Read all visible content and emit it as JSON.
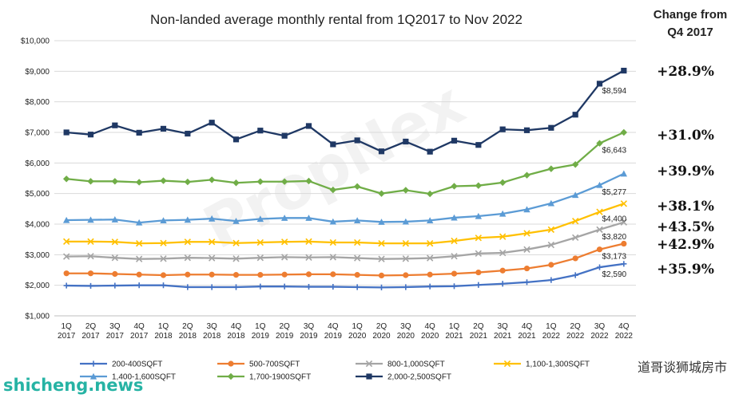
{
  "chart_data": {
    "type": "line",
    "title": "Non-landed average monthly rental from 1Q2017 to Nov 2022",
    "x_quarters": [
      "1Q",
      "2Q",
      "3Q",
      "4Q",
      "1Q",
      "2Q",
      "3Q",
      "4Q",
      "1Q",
      "2Q",
      "3Q",
      "4Q",
      "1Q",
      "2Q",
      "3Q",
      "4Q",
      "1Q",
      "2Q",
      "3Q",
      "4Q",
      "1Q",
      "2Q",
      "3Q",
      "4Q"
    ],
    "x_years": [
      "2017",
      "2017",
      "2017",
      "2017",
      "2018",
      "2018",
      "2018",
      "2018",
      "2019",
      "2019",
      "2019",
      "2019",
      "2020",
      "2020",
      "2020",
      "2020",
      "2021",
      "2021",
      "2021",
      "2021",
      "2022",
      "2022",
      "2022",
      "2022"
    ],
    "ylim": [
      1000,
      10000
    ],
    "y_ticks": [
      1000,
      2000,
      3000,
      4000,
      5000,
      6000,
      7000,
      8000,
      9000,
      10000
    ],
    "y_tick_labels": [
      "$1,000",
      "$2,000",
      "$3,000",
      "$4,000",
      "$5,000",
      "$6,000",
      "$7,000",
      "$8,000",
      "$9,000",
      "$10,000"
    ],
    "grid": "horizontal",
    "legend_position": "bottom",
    "series": [
      {
        "name": "200-400SQFT",
        "color": "#4472c4",
        "marker": "plus",
        "values": [
          1990,
          1980,
          1990,
          2000,
          2000,
          1940,
          1940,
          1940,
          1960,
          1960,
          1950,
          1950,
          1940,
          1930,
          1940,
          1960,
          1970,
          2010,
          2050,
          2100,
          2170,
          2330,
          2590,
          2700
        ],
        "end_label": "$2,590"
      },
      {
        "name": "500-700SQFT",
        "color": "#ed7d31",
        "marker": "circle",
        "values": [
          2390,
          2390,
          2370,
          2350,
          2330,
          2350,
          2350,
          2340,
          2340,
          2350,
          2360,
          2360,
          2340,
          2320,
          2330,
          2350,
          2380,
          2420,
          2480,
          2550,
          2670,
          2880,
          3173,
          3360
        ],
        "end_label": "$3,173"
      },
      {
        "name": "800-1,000SQFT",
        "color": "#a5a5a5",
        "marker": "x",
        "values": [
          2940,
          2950,
          2900,
          2860,
          2870,
          2900,
          2890,
          2870,
          2900,
          2920,
          2910,
          2920,
          2890,
          2860,
          2870,
          2890,
          2950,
          3040,
          3060,
          3170,
          3320,
          3560,
          3820,
          4060
        ],
        "end_label": "$3,820"
      },
      {
        "name": "1,100-1,300SQFT",
        "color": "#ffc000",
        "marker": "x",
        "values": [
          3430,
          3430,
          3420,
          3370,
          3380,
          3420,
          3420,
          3380,
          3400,
          3420,
          3430,
          3400,
          3400,
          3370,
          3370,
          3370,
          3450,
          3550,
          3590,
          3700,
          3820,
          4100,
          4400,
          4670
        ],
        "end_label": "$4,400"
      },
      {
        "name": "1,400-1,600SQFT",
        "color": "#5b9bd5",
        "marker": "triangle",
        "values": [
          4130,
          4140,
          4150,
          4050,
          4120,
          4140,
          4180,
          4100,
          4170,
          4200,
          4200,
          4080,
          4120,
          4070,
          4080,
          4120,
          4210,
          4260,
          4340,
          4480,
          4680,
          4950,
          5277,
          5650
        ],
        "end_label": "$5,277"
      },
      {
        "name": "1,700-1900SQFT",
        "color": "#70ad47",
        "marker": "diamond",
        "values": [
          5480,
          5400,
          5400,
          5370,
          5420,
          5380,
          5450,
          5350,
          5390,
          5390,
          5410,
          5120,
          5230,
          5000,
          5110,
          4990,
          5240,
          5260,
          5360,
          5600,
          5810,
          5950,
          6643,
          7000
        ],
        "end_label": "$6,643"
      },
      {
        "name": "2,000-2,500SQFT",
        "color": "#1f3864",
        "marker": "square",
        "values": [
          7000,
          6930,
          7230,
          6990,
          7120,
          6960,
          7320,
          6770,
          7060,
          6890,
          7210,
          6610,
          6740,
          6380,
          6700,
          6370,
          6730,
          6590,
          7100,
          7070,
          7150,
          7580,
          8594,
          9020
        ],
        "end_label": "$8,594"
      }
    ],
    "change_header": [
      "Change from",
      "Q4 2017"
    ],
    "changes": [
      "+28.9%",
      "+31.0%",
      "+39.9%",
      "+38.1%",
      "+43.5%",
      "+42.9%",
      "+35.9%"
    ],
    "watermark": "PropNex",
    "footer_site": "shicheng.news",
    "footer_wechat": "道哥谈狮城房市"
  }
}
